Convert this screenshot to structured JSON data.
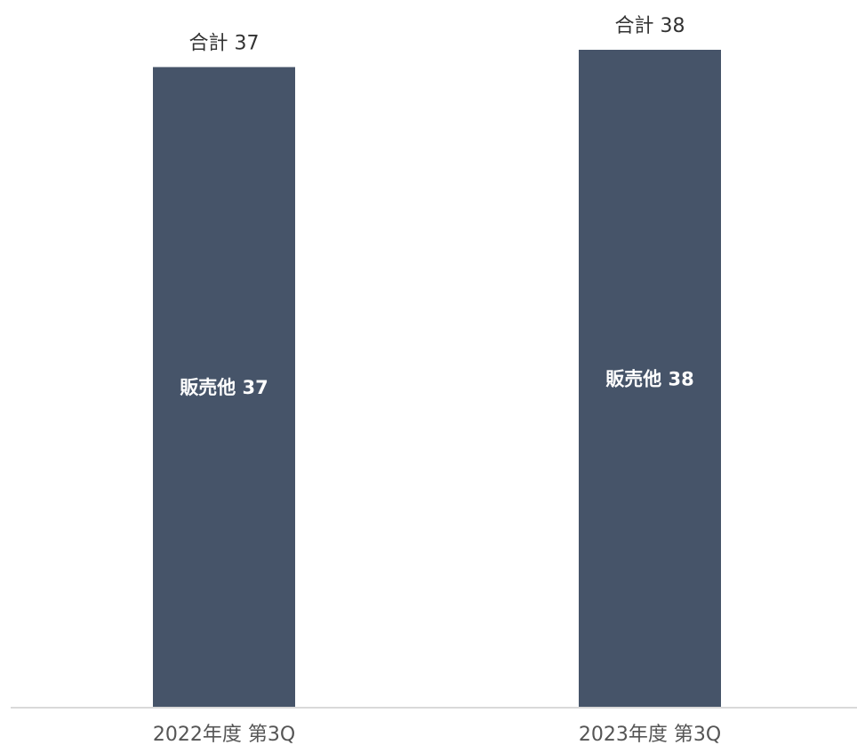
{
  "chart_data": {
    "type": "bar",
    "stacked": true,
    "categories": [
      "2022年度 第3Q",
      "2023年度 第3Q"
    ],
    "series": [
      {
        "name": "販売他",
        "values": [
          37,
          38
        ],
        "color": "#465469"
      }
    ],
    "segment_labels": [
      "販売他 37",
      "販売他 38"
    ],
    "totals": [
      37,
      38
    ],
    "total_labels": [
      "合計 37",
      "合計 38"
    ],
    "ylim": [
      0,
      38
    ],
    "grid": false,
    "legend": "none",
    "title": "",
    "xlabel": "",
    "ylabel": ""
  }
}
